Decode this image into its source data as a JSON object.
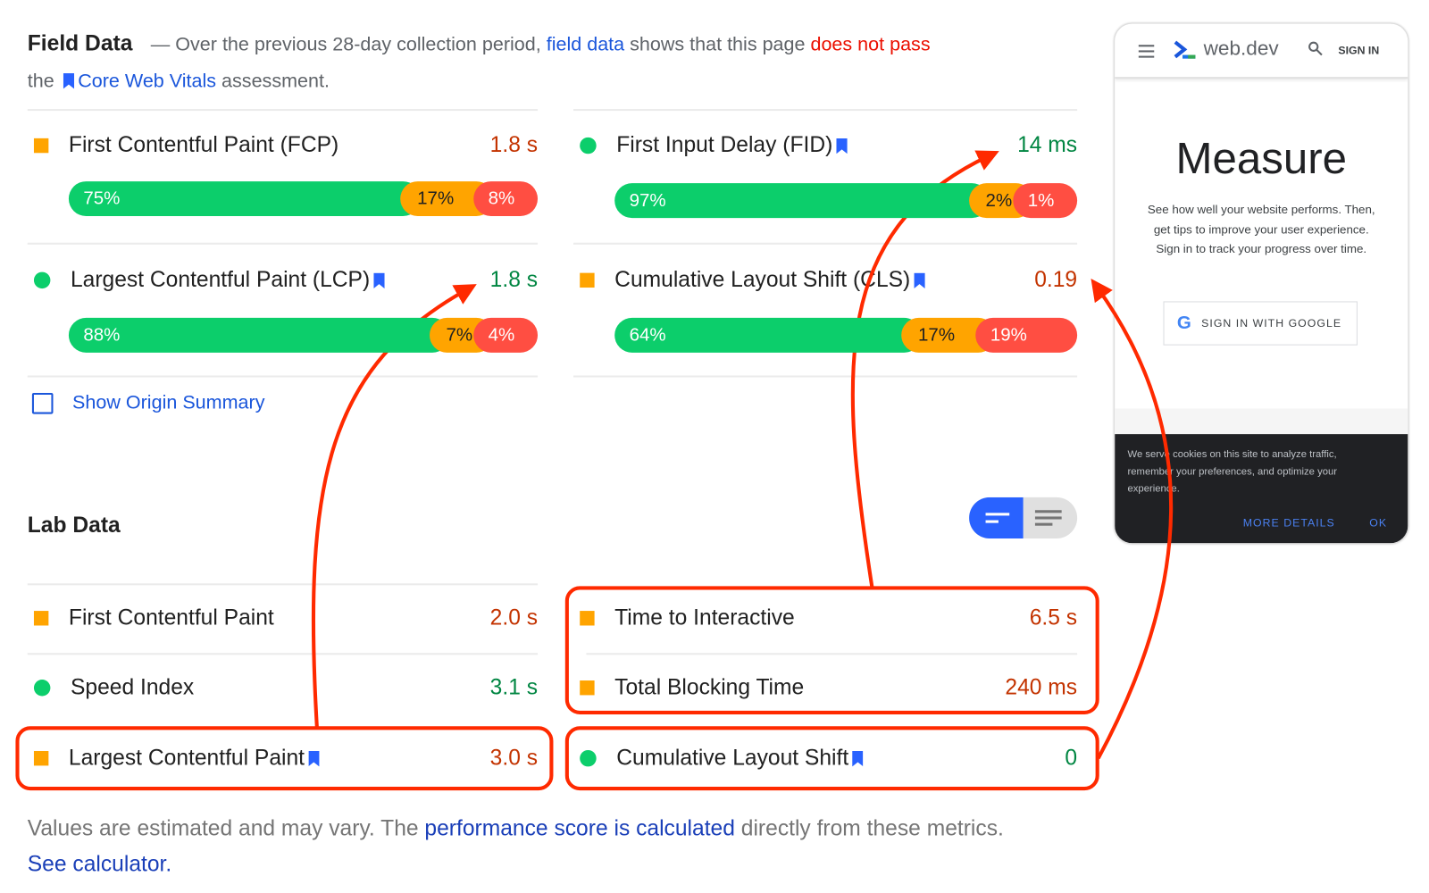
{
  "field": {
    "title": "Field Data",
    "dash": "—",
    "intro_1": "Over the previous 28-day collection period,",
    "field_data_link": "field data",
    "intro_2": "shows that this page",
    "fail_text": "does not pass",
    "intro_3": "the",
    "cwv_link": "Core Web Vitals",
    "intro_4": "assessment.",
    "metrics": [
      {
        "label": "First Contentful Paint (FCP)",
        "value": "1.8 s",
        "status": "average",
        "bookmark": false,
        "dist": [
          75,
          17,
          8
        ],
        "dist_labels": [
          "75%",
          "17%",
          "8%"
        ]
      },
      {
        "label": "First Input Delay (FID)",
        "value": "14 ms",
        "status": "pass",
        "bookmark": true,
        "dist": [
          97,
          2,
          1
        ],
        "dist_labels": [
          "97%",
          "2%",
          "1%"
        ]
      },
      {
        "label": "Largest Contentful Paint (LCP)",
        "value": "1.8 s",
        "status": "pass",
        "bookmark": true,
        "dist": [
          88,
          7,
          4
        ],
        "dist_labels": [
          "88%",
          "7%",
          "4%"
        ]
      },
      {
        "label": "Cumulative Layout Shift (CLS)",
        "value": "0.19",
        "status": "average",
        "bookmark": true,
        "dist": [
          64,
          17,
          19
        ],
        "dist_labels": [
          "64%",
          "17%",
          "19%"
        ]
      }
    ],
    "origin_summary": "Show Origin Summary"
  },
  "lab": {
    "title": "Lab Data",
    "metrics": [
      {
        "label": "First Contentful Paint",
        "value": "2.0 s",
        "status": "average"
      },
      {
        "label": "Time to Interactive",
        "value": "6.5 s",
        "status": "average"
      },
      {
        "label": "Speed Index",
        "value": "3.1 s",
        "status": "pass"
      },
      {
        "label": "Total Blocking Time",
        "value": "240 ms",
        "status": "average"
      },
      {
        "label": "Largest Contentful Paint",
        "value": "3.0 s",
        "status": "average",
        "bookmark": true
      },
      {
        "label": "Cumulative Layout Shift",
        "value": "0",
        "status": "pass",
        "bookmark": true
      }
    ]
  },
  "footer": {
    "text_1": "Values are estimated and may vary. The",
    "perf_link": "performance score is calculated",
    "text_2": "directly from these metrics.",
    "calc_link": "See calculator."
  },
  "phone": {
    "brand": "web.dev",
    "sign_in": "SIGN IN",
    "heading": "Measure",
    "body": "See how well your website performs. Then, get tips to improve your user experience. Sign in to track your progress over time.",
    "google_button": "SIGN IN WITH GOOGLE",
    "cookie_text": "We serve cookies on this site to analyze traffic, remember your preferences, and optimize your experience.",
    "more_details": "MORE DETAILS",
    "ok": "OK"
  },
  "colors": {
    "pass": "#0cce6b",
    "average": "#ffa400",
    "fail": "#ff4e42",
    "value_pass": "#018642",
    "value_fail": "#c33300",
    "link": "#1a56db",
    "annotation": "#ff2a00",
    "bookmark": "#2962ff"
  }
}
